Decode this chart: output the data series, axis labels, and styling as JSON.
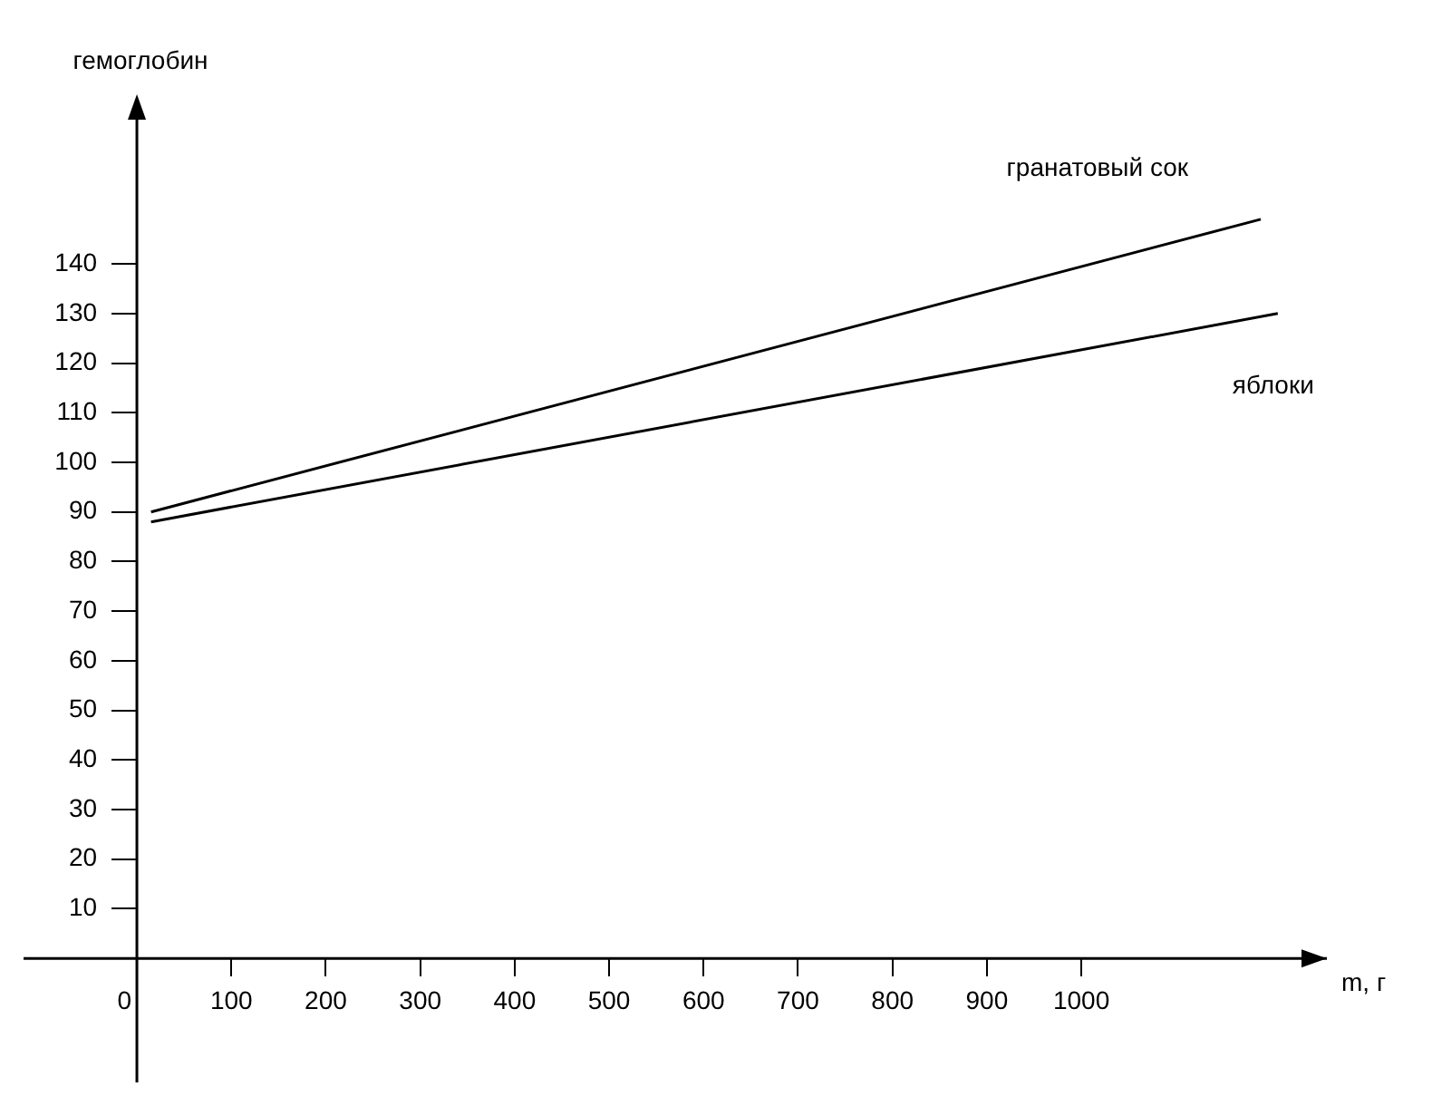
{
  "chart_data": {
    "type": "line",
    "xlabel": "m, г",
    "ylabel": "гемоглобин",
    "xlim": [
      -120,
      1260
    ],
    "ylim": [
      -25,
      172
    ],
    "xticks": [
      0,
      100,
      200,
      300,
      400,
      500,
      600,
      700,
      800,
      900,
      1000
    ],
    "yticks": [
      10,
      20,
      30,
      40,
      50,
      60,
      70,
      80,
      90,
      100,
      110,
      120,
      130,
      140
    ],
    "series": [
      {
        "name": "гранатовый сок",
        "color": "#000000",
        "x": [
          15,
          1190
        ],
        "values": [
          90,
          149
        ]
      },
      {
        "name": "яблоки",
        "color": "#000000",
        "x": [
          15,
          1208
        ],
        "values": [
          88,
          130
        ]
      }
    ],
    "grid": false,
    "legend": false,
    "marker": "none",
    "line_style": "solid"
  }
}
